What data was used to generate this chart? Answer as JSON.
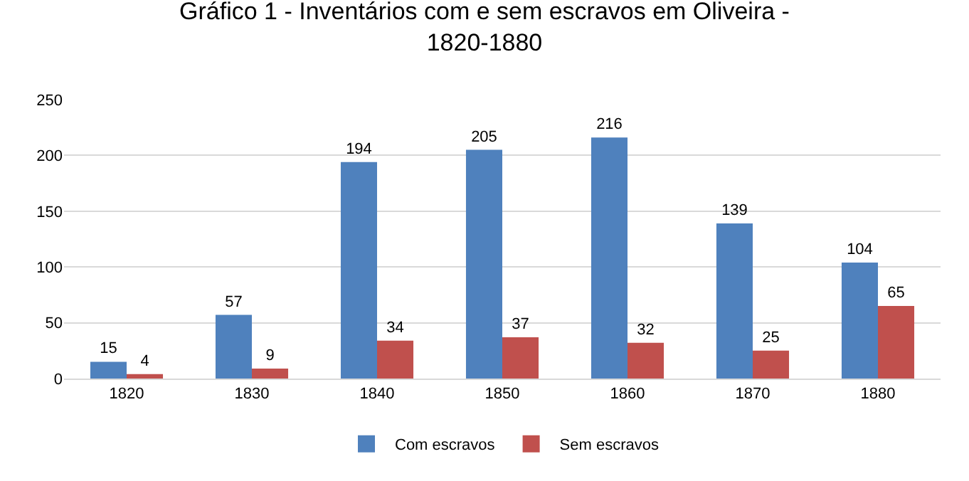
{
  "chart_data": {
    "type": "bar",
    "title": "Gráfico 1 - Inventários com e sem escravos em Oliveira -\n1820-1880",
    "categories": [
      "1820",
      "1830",
      "1840",
      "1850",
      "1860",
      "1870",
      "1880"
    ],
    "series": [
      {
        "name": "Com escravos",
        "color": "#4f81bd",
        "values": [
          15,
          57,
          194,
          205,
          216,
          139,
          104
        ]
      },
      {
        "name": "Sem escravos",
        "color": "#c0504d",
        "values": [
          4,
          9,
          34,
          37,
          32,
          25,
          65
        ]
      }
    ],
    "ylim": [
      0,
      250
    ],
    "yticks": [
      0,
      50,
      100,
      150,
      200,
      250
    ],
    "grid": "y",
    "legend": "bottom",
    "data_labels": true
  }
}
